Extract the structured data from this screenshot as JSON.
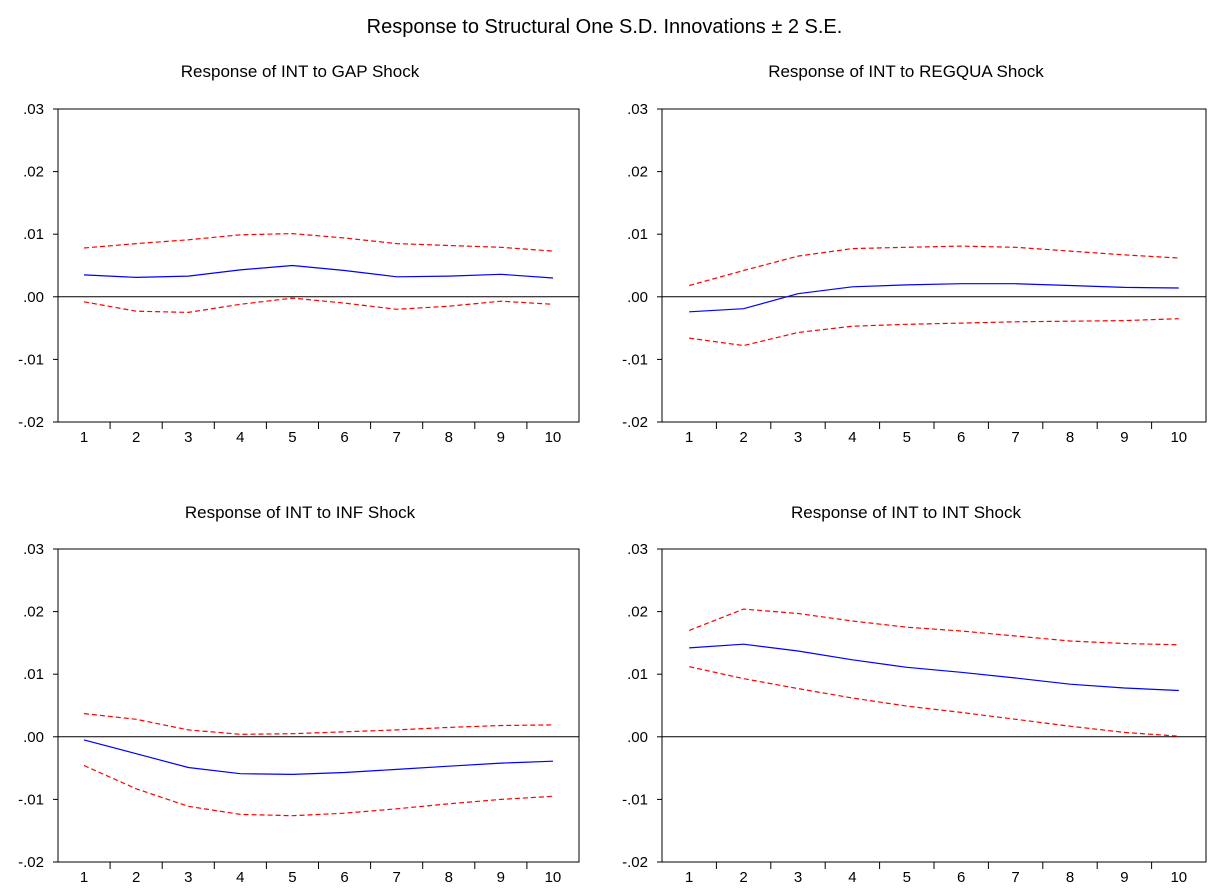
{
  "figure": {
    "title": "Response to Structural One S.D. Innovations ± 2 S.E."
  },
  "colors": {
    "response": "#0000ff",
    "bands": "#ff0000",
    "axis": "#000000"
  },
  "chart_data": [
    {
      "type": "line",
      "title": "Response of INT to GAP Shock",
      "x": [
        1,
        2,
        3,
        4,
        5,
        6,
        7,
        8,
        9,
        10
      ],
      "ylim": [
        -0.02,
        0.03
      ],
      "y_ticks": [
        ".03",
        ".02",
        ".01",
        ".00",
        "-.01",
        "-.02"
      ],
      "x_ticks": [
        "1",
        "2",
        "3",
        "4",
        "5",
        "6",
        "7",
        "8",
        "9",
        "10"
      ],
      "series": [
        {
          "role": "response",
          "style": "solid",
          "values": [
            0.0035,
            0.0031,
            0.0033,
            0.0043,
            0.005,
            0.0042,
            0.0032,
            0.0033,
            0.0036,
            0.003
          ]
        },
        {
          "role": "upper",
          "style": "dashed",
          "values": [
            0.0078,
            0.0085,
            0.0091,
            0.0099,
            0.0101,
            0.0094,
            0.0085,
            0.0082,
            0.0079,
            0.0073
          ]
        },
        {
          "role": "lower",
          "style": "dashed",
          "values": [
            -0.0008,
            -0.0023,
            -0.0025,
            -0.0012,
            -0.0002,
            -0.001,
            -0.002,
            -0.0015,
            -0.0007,
            -0.0012
          ]
        }
      ]
    },
    {
      "type": "line",
      "title": "Response of INT to REGQUA Shock",
      "x": [
        1,
        2,
        3,
        4,
        5,
        6,
        7,
        8,
        9,
        10
      ],
      "ylim": [
        -0.02,
        0.03
      ],
      "y_ticks": [
        ".03",
        ".02",
        ".01",
        ".00",
        "-.01",
        "-.02"
      ],
      "x_ticks": [
        "1",
        "2",
        "3",
        "4",
        "5",
        "6",
        "7",
        "8",
        "9",
        "10"
      ],
      "series": [
        {
          "role": "response",
          "style": "solid",
          "values": [
            -0.0024,
            -0.0019,
            0.0005,
            0.0016,
            0.0019,
            0.0021,
            0.0021,
            0.0018,
            0.0015,
            0.0014
          ]
        },
        {
          "role": "upper",
          "style": "dashed",
          "values": [
            0.0018,
            0.0042,
            0.0065,
            0.0077,
            0.0079,
            0.0081,
            0.0079,
            0.0073,
            0.0067,
            0.0062
          ]
        },
        {
          "role": "lower",
          "style": "dashed",
          "values": [
            -0.0066,
            -0.0078,
            -0.0057,
            -0.0047,
            -0.0044,
            -0.0042,
            -0.004,
            -0.0039,
            -0.0038,
            -0.0035
          ]
        }
      ]
    },
    {
      "type": "line",
      "title": "Response of INT to INF Shock",
      "x": [
        1,
        2,
        3,
        4,
        5,
        6,
        7,
        8,
        9,
        10
      ],
      "ylim": [
        -0.02,
        0.03
      ],
      "y_ticks": [
        ".03",
        ".02",
        ".01",
        ".00",
        "-.01",
        "-.02"
      ],
      "x_ticks": [
        "1",
        "2",
        "3",
        "4",
        "5",
        "6",
        "7",
        "8",
        "9",
        "10"
      ],
      "series": [
        {
          "role": "response",
          "style": "solid",
          "values": [
            -0.0005,
            -0.0027,
            -0.0049,
            -0.0059,
            -0.006,
            -0.0057,
            -0.0052,
            -0.0047,
            -0.0042,
            -0.0039
          ]
        },
        {
          "role": "upper",
          "style": "dashed",
          "values": [
            0.0037,
            0.0028,
            0.0011,
            0.0004,
            0.0005,
            0.0008,
            0.0011,
            0.0015,
            0.0018,
            0.0019
          ]
        },
        {
          "role": "lower",
          "style": "dashed",
          "values": [
            -0.0046,
            -0.0083,
            -0.0111,
            -0.0124,
            -0.0126,
            -0.0122,
            -0.0115,
            -0.0107,
            -0.01,
            -0.0095
          ]
        }
      ]
    },
    {
      "type": "line",
      "title": "Response of INT to INT Shock",
      "x": [
        1,
        2,
        3,
        4,
        5,
        6,
        7,
        8,
        9,
        10
      ],
      "ylim": [
        -0.02,
        0.03
      ],
      "y_ticks": [
        ".03",
        ".02",
        ".01",
        ".00",
        "-.01",
        "-.02"
      ],
      "x_ticks": [
        "1",
        "2",
        "3",
        "4",
        "5",
        "6",
        "7",
        "8",
        "9",
        "10"
      ],
      "series": [
        {
          "role": "response",
          "style": "solid",
          "values": [
            0.0142,
            0.0148,
            0.0137,
            0.0123,
            0.0111,
            0.0103,
            0.0094,
            0.0084,
            0.0078,
            0.0074
          ]
        },
        {
          "role": "upper",
          "style": "dashed",
          "values": [
            0.017,
            0.0204,
            0.0197,
            0.0185,
            0.0175,
            0.0169,
            0.0161,
            0.0153,
            0.0149,
            0.0147
          ]
        },
        {
          "role": "lower",
          "style": "dashed",
          "values": [
            0.0112,
            0.0093,
            0.0077,
            0.0062,
            0.0049,
            0.0039,
            0.0028,
            0.0017,
            0.0007,
            0.0001
          ]
        }
      ]
    }
  ]
}
